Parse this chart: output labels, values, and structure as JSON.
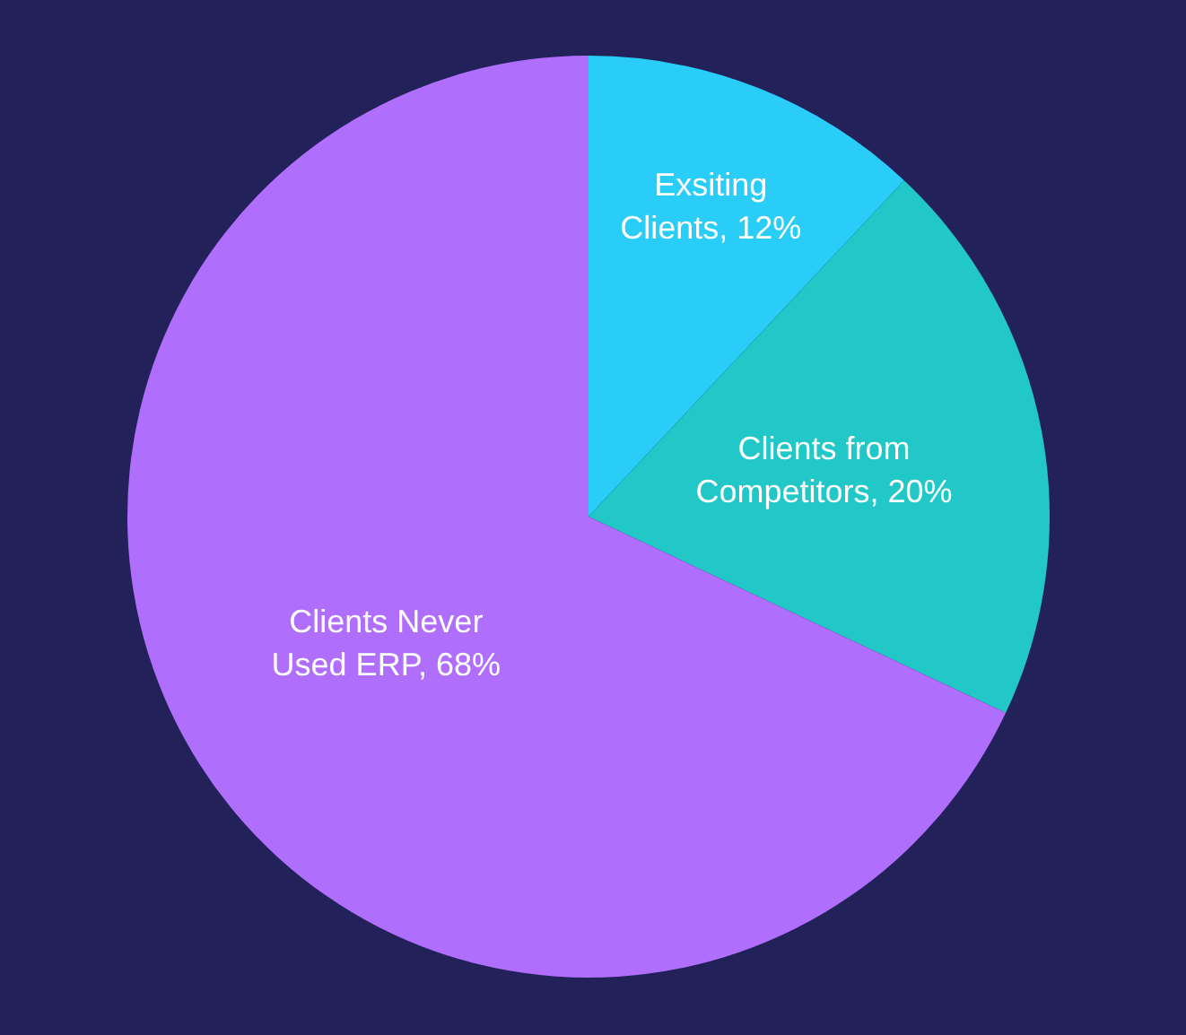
{
  "chart_data": {
    "type": "pie",
    "categories": [
      "Exsiting Clients",
      "Clients from Competitors",
      "Clients Never Used ERP"
    ],
    "values": [
      12,
      20,
      68
    ],
    "value_labels": [
      "12%",
      "20%",
      "68%"
    ],
    "colors": [
      "#29cdf7",
      "#22c7c7",
      "#b06efc"
    ]
  }
}
